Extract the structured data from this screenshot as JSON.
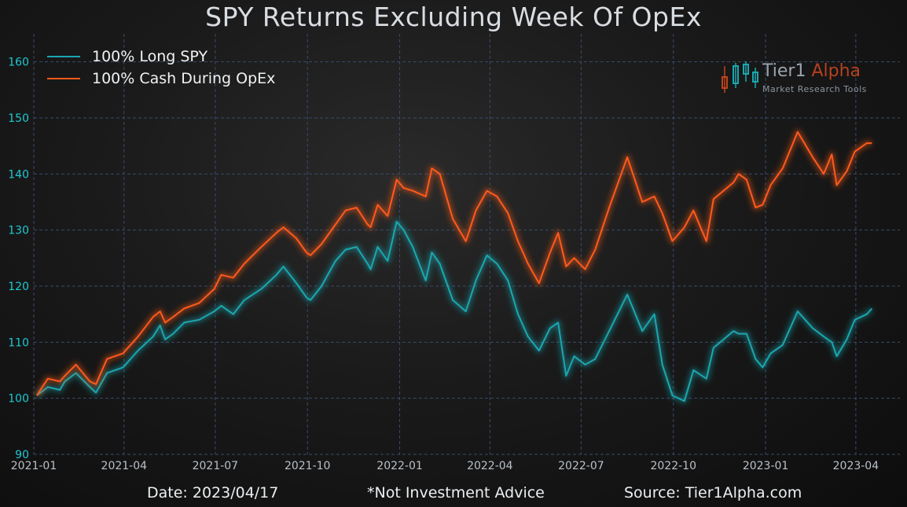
{
  "footer": {
    "date": "Date: 2023/04/17",
    "disclaimer": "*Not Investment Advice",
    "source": "Source: Tier1Alpha.com"
  },
  "logo": {
    "name_part1": "Tier1 ",
    "name_part2": "Alpha",
    "tagline": "Market  Research Tools"
  },
  "colors": {
    "long_spy": "#1aa7b0",
    "cash_opex": "#ff5a1a",
    "grid": "#3a4a6a",
    "tick": "#1ec8d2",
    "xtick": "#b9c0c8"
  },
  "chart_data": {
    "type": "line",
    "title": "SPY Returns Excluding Week Of OpEx",
    "xlabel": "",
    "ylabel": "",
    "ylim": [
      90,
      165
    ],
    "yticks": [
      90,
      100,
      110,
      120,
      130,
      140,
      150,
      160
    ],
    "xlim": [
      "2021-01-01",
      "2023-05-15"
    ],
    "xticks": [
      "2021-01",
      "2021-04",
      "2021-07",
      "2021-10",
      "2022-01",
      "2022-04",
      "2022-07",
      "2022-10",
      "2023-01",
      "2023-04"
    ],
    "grid": true,
    "legend_position": "top-left",
    "series": [
      {
        "name": "100% Long SPY",
        "color": "#1aa7b0",
        "points": [
          [
            "2021-01-04",
            100.5
          ],
          [
            "2021-01-15",
            102
          ],
          [
            "2021-01-27",
            101.5
          ],
          [
            "2021-02-01",
            103
          ],
          [
            "2021-02-12",
            104.5
          ],
          [
            "2021-02-26",
            102
          ],
          [
            "2021-03-04",
            101
          ],
          [
            "2021-03-15",
            104.5
          ],
          [
            "2021-03-31",
            105.5
          ],
          [
            "2021-04-15",
            108.5
          ],
          [
            "2021-04-30",
            111
          ],
          [
            "2021-05-07",
            113
          ],
          [
            "2021-05-12",
            110.5
          ],
          [
            "2021-05-20",
            111.5
          ],
          [
            "2021-05-31",
            113.5
          ],
          [
            "2021-06-15",
            114
          ],
          [
            "2021-06-30",
            115.5
          ],
          [
            "2021-07-07",
            116.5
          ],
          [
            "2021-07-19",
            115
          ],
          [
            "2021-07-30",
            117.5
          ],
          [
            "2021-08-16",
            119.5
          ],
          [
            "2021-08-31",
            122
          ],
          [
            "2021-09-07",
            123.5
          ],
          [
            "2021-09-20",
            120.5
          ],
          [
            "2021-09-30",
            118
          ],
          [
            "2021-10-04",
            117.5
          ],
          [
            "2021-10-15",
            120
          ],
          [
            "2021-10-29",
            124.5
          ],
          [
            "2021-11-08",
            126.5
          ],
          [
            "2021-11-19",
            127
          ],
          [
            "2021-11-30",
            124
          ],
          [
            "2021-12-03",
            123
          ],
          [
            "2021-12-10",
            127
          ],
          [
            "2021-12-20",
            124.5
          ],
          [
            "2021-12-29",
            131.5
          ],
          [
            "2022-01-05",
            130
          ],
          [
            "2022-01-14",
            127
          ],
          [
            "2022-01-27",
            121
          ],
          [
            "2022-02-02",
            126
          ],
          [
            "2022-02-10",
            124
          ],
          [
            "2022-02-23",
            117.5
          ],
          [
            "2022-03-08",
            115.5
          ],
          [
            "2022-03-18",
            121
          ],
          [
            "2022-03-29",
            125.5
          ],
          [
            "2022-04-08",
            124
          ],
          [
            "2022-04-19",
            121
          ],
          [
            "2022-04-29",
            115
          ],
          [
            "2022-05-09",
            111
          ],
          [
            "2022-05-20",
            108.5
          ],
          [
            "2022-05-31",
            112.5
          ],
          [
            "2022-06-08",
            113.5
          ],
          [
            "2022-06-16",
            104
          ],
          [
            "2022-06-24",
            107.5
          ],
          [
            "2022-07-05",
            106
          ],
          [
            "2022-07-15",
            107
          ],
          [
            "2022-07-29",
            112
          ],
          [
            "2022-08-16",
            118.5
          ],
          [
            "2022-08-31",
            112
          ],
          [
            "2022-09-12",
            115
          ],
          [
            "2022-09-20",
            106
          ],
          [
            "2022-09-30",
            100.5
          ],
          [
            "2022-10-12",
            99.5
          ],
          [
            "2022-10-21",
            105
          ],
          [
            "2022-11-03",
            103.5
          ],
          [
            "2022-11-10",
            109
          ],
          [
            "2022-11-30",
            112
          ],
          [
            "2022-12-05",
            111.5
          ],
          [
            "2022-12-13",
            111.5
          ],
          [
            "2022-12-22",
            107
          ],
          [
            "2022-12-29",
            105.5
          ],
          [
            "2023-01-06",
            108
          ],
          [
            "2023-01-18",
            109.5
          ],
          [
            "2023-02-02",
            115.5
          ],
          [
            "2023-02-17",
            112.5
          ],
          [
            "2023-02-28",
            111
          ],
          [
            "2023-03-08",
            110
          ],
          [
            "2023-03-13",
            107.5
          ],
          [
            "2023-03-23",
            110.5
          ],
          [
            "2023-03-31",
            114
          ],
          [
            "2023-04-12",
            115
          ],
          [
            "2023-04-17",
            116
          ]
        ]
      },
      {
        "name": "100% Cash During OpEx",
        "color": "#ff5a1a",
        "points": [
          [
            "2021-01-04",
            100.5
          ],
          [
            "2021-01-15",
            103.5
          ],
          [
            "2021-01-27",
            103
          ],
          [
            "2021-02-01",
            104
          ],
          [
            "2021-02-12",
            106
          ],
          [
            "2021-02-26",
            103
          ],
          [
            "2021-03-04",
            102.5
          ],
          [
            "2021-03-15",
            107
          ],
          [
            "2021-03-31",
            108
          ],
          [
            "2021-04-15",
            111
          ],
          [
            "2021-04-30",
            114.5
          ],
          [
            "2021-05-07",
            115.5
          ],
          [
            "2021-05-12",
            113.5
          ],
          [
            "2021-05-20",
            114.5
          ],
          [
            "2021-05-31",
            116
          ],
          [
            "2021-06-15",
            117
          ],
          [
            "2021-06-30",
            119.5
          ],
          [
            "2021-07-07",
            122
          ],
          [
            "2021-07-19",
            121.5
          ],
          [
            "2021-07-30",
            124
          ],
          [
            "2021-08-16",
            127
          ],
          [
            "2021-08-31",
            129.5
          ],
          [
            "2021-09-07",
            130.5
          ],
          [
            "2021-09-20",
            128.5
          ],
          [
            "2021-09-30",
            126
          ],
          [
            "2021-10-04",
            125.5
          ],
          [
            "2021-10-15",
            127.5
          ],
          [
            "2021-10-29",
            131
          ],
          [
            "2021-11-08",
            133.5
          ],
          [
            "2021-11-19",
            134
          ],
          [
            "2021-11-30",
            131
          ],
          [
            "2021-12-03",
            130.5
          ],
          [
            "2021-12-10",
            134.5
          ],
          [
            "2021-12-20",
            132.5
          ],
          [
            "2021-12-29",
            139
          ],
          [
            "2022-01-05",
            137.5
          ],
          [
            "2022-01-14",
            137
          ],
          [
            "2022-01-27",
            136
          ],
          [
            "2022-02-02",
            141
          ],
          [
            "2022-02-10",
            140
          ],
          [
            "2022-02-23",
            132
          ],
          [
            "2022-03-08",
            128
          ],
          [
            "2022-03-18",
            133.5
          ],
          [
            "2022-03-29",
            137
          ],
          [
            "2022-04-08",
            136
          ],
          [
            "2022-04-19",
            133
          ],
          [
            "2022-04-29",
            128
          ],
          [
            "2022-05-09",
            124
          ],
          [
            "2022-05-20",
            120.5
          ],
          [
            "2022-05-31",
            126
          ],
          [
            "2022-06-08",
            129.5
          ],
          [
            "2022-06-16",
            123.5
          ],
          [
            "2022-06-24",
            125
          ],
          [
            "2022-07-05",
            123
          ],
          [
            "2022-07-15",
            126.5
          ],
          [
            "2022-07-29",
            134
          ],
          [
            "2022-08-16",
            143
          ],
          [
            "2022-08-31",
            135
          ],
          [
            "2022-09-12",
            136
          ],
          [
            "2022-09-20",
            133
          ],
          [
            "2022-09-30",
            128
          ],
          [
            "2022-10-12",
            130.5
          ],
          [
            "2022-10-21",
            133.5
          ],
          [
            "2022-11-03",
            128
          ],
          [
            "2022-11-10",
            135.5
          ],
          [
            "2022-11-30",
            138.5
          ],
          [
            "2022-12-05",
            140
          ],
          [
            "2022-12-13",
            139
          ],
          [
            "2022-12-22",
            134
          ],
          [
            "2022-12-29",
            134.5
          ],
          [
            "2023-01-06",
            138
          ],
          [
            "2023-01-18",
            141
          ],
          [
            "2023-02-02",
            147.5
          ],
          [
            "2023-02-17",
            143
          ],
          [
            "2023-02-28",
            140
          ],
          [
            "2023-03-08",
            143.5
          ],
          [
            "2023-03-13",
            138
          ],
          [
            "2023-03-23",
            140.5
          ],
          [
            "2023-03-31",
            144
          ],
          [
            "2023-04-12",
            145.5
          ],
          [
            "2023-04-17",
            145.5
          ]
        ]
      }
    ]
  }
}
